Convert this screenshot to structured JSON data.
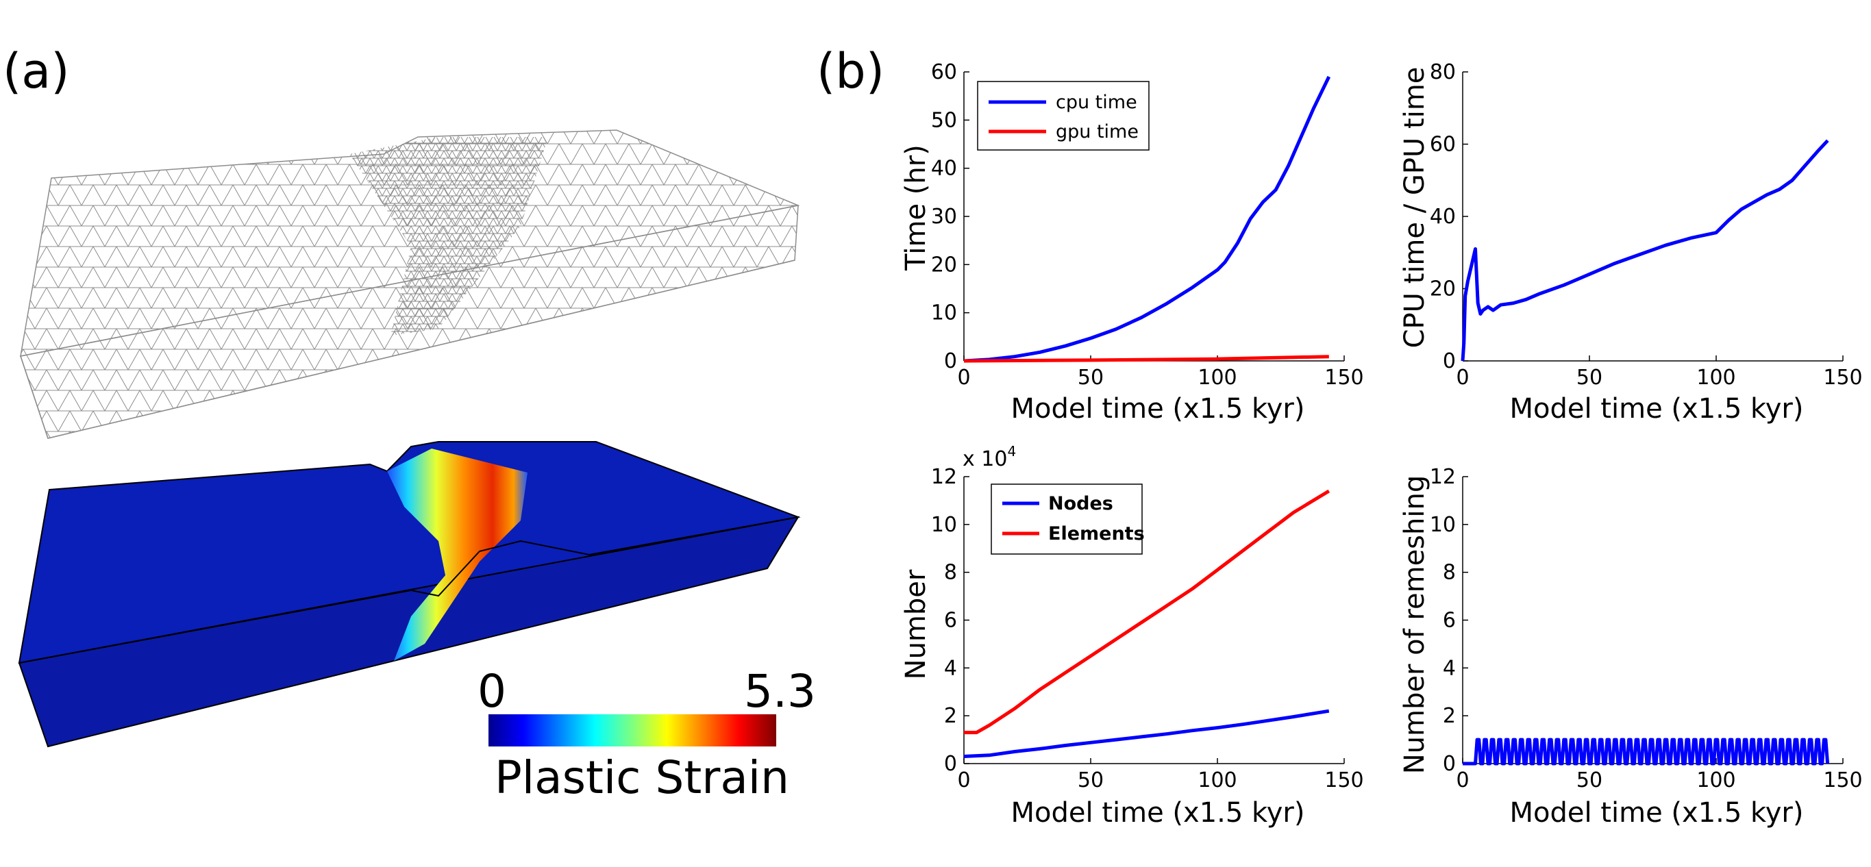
{
  "panel_labels": {
    "a": "(a)",
    "b": "(b)"
  },
  "colorbar": {
    "min_label": "0",
    "max_label": "5.3",
    "title": "Plastic Strain"
  },
  "chart_data": [
    {
      "type": "line",
      "id": "time",
      "xlabel": "Model time (x1.5 kyr)",
      "ylabel": "Time (hr)",
      "xlim": [
        0,
        150
      ],
      "ylim": [
        0,
        60
      ],
      "xticks": [
        0,
        50,
        100,
        150
      ],
      "yticks": [
        0,
        10,
        20,
        30,
        40,
        50,
        60
      ],
      "legend_position": "top-left",
      "series": [
        {
          "name": "cpu time",
          "color": "#0000ff",
          "x": [
            0,
            10,
            20,
            30,
            40,
            50,
            60,
            70,
            80,
            90,
            100,
            103,
            108,
            113,
            118,
            123,
            128,
            133,
            138,
            144
          ],
          "y": [
            0,
            0.3,
            0.9,
            1.8,
            3.1,
            4.7,
            6.6,
            9.0,
            11.9,
            15.2,
            18.9,
            20.5,
            24.5,
            29.5,
            33.0,
            35.5,
            40.5,
            46.5,
            52.5,
            59
          ]
        },
        {
          "name": "gpu time",
          "color": "#ff0000",
          "x": [
            0,
            50,
            100,
            144
          ],
          "y": [
            0,
            0.15,
            0.4,
            0.9
          ]
        }
      ]
    },
    {
      "type": "line",
      "id": "ratio",
      "xlabel": "Model time (x1.5 kyr)",
      "ylabel": "CPU time / GPU time",
      "xlim": [
        0,
        150
      ],
      "ylim": [
        0,
        80
      ],
      "xticks": [
        0,
        50,
        100,
        150
      ],
      "yticks": [
        0,
        20,
        40,
        60,
        80
      ],
      "series": [
        {
          "name": "",
          "color": "#0000ff",
          "x": [
            0,
            0.5,
            1,
            2,
            3,
            4,
            5,
            6,
            7,
            8,
            10,
            12,
            15,
            20,
            25,
            30,
            40,
            50,
            60,
            70,
            80,
            90,
            100,
            105,
            110,
            115,
            120,
            125,
            130,
            135,
            140,
            144
          ],
          "y": [
            0,
            5,
            18,
            22,
            25,
            28,
            31,
            16,
            13,
            14,
            15,
            14,
            15.5,
            16,
            17,
            18.5,
            21,
            24,
            27,
            29.5,
            32,
            34,
            35.5,
            39,
            42,
            44,
            46,
            47.5,
            50,
            54,
            58,
            61
          ]
        }
      ]
    },
    {
      "type": "line",
      "id": "nodes",
      "xlabel": "Model time (x1.5 kyr)",
      "ylabel": "Number",
      "multiplier": "x 10",
      "multiplier_exp": "4",
      "xlim": [
        0,
        150
      ],
      "ylim": [
        0,
        12
      ],
      "xticks": [
        0,
        50,
        100,
        150
      ],
      "yticks": [
        0,
        2,
        4,
        6,
        8,
        10,
        12
      ],
      "legend_position": "top-left",
      "series": [
        {
          "name": "Nodes",
          "color": "#0000ff",
          "x": [
            0,
            10,
            20,
            30,
            40,
            50,
            60,
            70,
            80,
            90,
            100,
            110,
            120,
            130,
            144
          ],
          "y": [
            0.3,
            0.35,
            0.5,
            0.62,
            0.76,
            0.88,
            1.0,
            1.12,
            1.24,
            1.38,
            1.5,
            1.64,
            1.8,
            1.96,
            2.2
          ]
        },
        {
          "name": "Elements",
          "color": "#ff0000",
          "x": [
            0,
            5,
            10,
            20,
            30,
            40,
            50,
            60,
            70,
            80,
            90,
            100,
            110,
            120,
            130,
            144
          ],
          "y": [
            1.3,
            1.3,
            1.6,
            2.3,
            3.1,
            3.8,
            4.5,
            5.2,
            5.9,
            6.6,
            7.3,
            8.1,
            8.9,
            9.7,
            10.5,
            11.4
          ]
        }
      ]
    },
    {
      "type": "line",
      "id": "remesh",
      "xlabel": "Model time (x1.5 kyr)",
      "ylabel": "Number of remeshing",
      "xlim": [
        0,
        150
      ],
      "ylim": [
        0,
        12
      ],
      "xticks": [
        0,
        50,
        100,
        150
      ],
      "yticks": [
        0,
        2,
        4,
        6,
        8,
        10,
        12
      ],
      "series": [
        {
          "name": "",
          "color": "#0000ff",
          "pulse_start": 5,
          "pulse_end": 143,
          "pulse_period": 2.85,
          "pulse_height": 1
        }
      ]
    }
  ]
}
